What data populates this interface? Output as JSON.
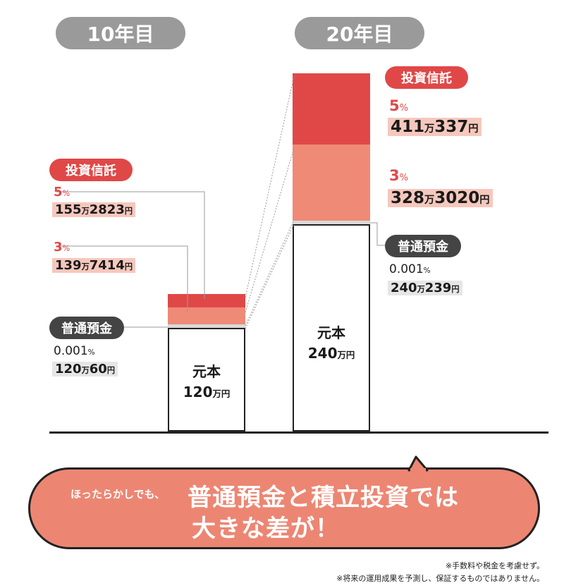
{
  "chart_data": {
    "type": "bar",
    "categories": [
      "10年目",
      "20年目"
    ],
    "series": [
      {
        "name": "元本",
        "values": [
          1200000,
          2400000
        ]
      },
      {
        "name": "普通預金 0.001%",
        "values": [
          1200060,
          2400239
        ]
      },
      {
        "name": "投資信託 3%",
        "values": [
          1397414,
          3283020
        ]
      },
      {
        "name": "投資信託 5%",
        "values": [
          1552823,
          4110337
        ]
      }
    ]
  },
  "year_labels": [
    "10年目",
    "20年目"
  ],
  "y10": {
    "principal": {
      "label": "元本",
      "num": "120",
      "unit": "万円"
    },
    "trust_tag": "投資信託",
    "r5": {
      "num": "5",
      "pct": "%",
      "a1": "155",
      "u1": "万",
      "a2": "2823",
      "u2": "円"
    },
    "r3": {
      "num": "3",
      "pct": "%",
      "a1": "139",
      "u1": "万",
      "a2": "7414",
      "u2": "円"
    },
    "deposit_tag": "普通預金",
    "dep": {
      "num": "0.001",
      "pct": "%",
      "a1": "120",
      "u1": "万",
      "a2": "60",
      "u2": "円"
    }
  },
  "y20": {
    "principal": {
      "label": "元本",
      "num": "240",
      "unit": "万円"
    },
    "trust_tag": "投資信託",
    "r5": {
      "num": "5",
      "pct": "%",
      "a1": "411",
      "u1": "万",
      "a2": "337",
      "u2": "円"
    },
    "r3": {
      "num": "3",
      "pct": "%",
      "a1": "328",
      "u1": "万",
      "a2": "3020",
      "u2": "円"
    },
    "deposit_tag": "普通預金",
    "dep": {
      "num": "0.001",
      "pct": "%",
      "a1": "240",
      "u1": "万",
      "a2": "239",
      "u2": "円"
    }
  },
  "callout": {
    "lead": "ほったらかしでも、",
    "line1": "普通預金と積立投資では",
    "line2": "大きな差が！"
  },
  "notes": [
    "※手数料や税金を考慮せず。",
    "※将来の運用成果を予測し、保証するものではありません。"
  ],
  "colors": {
    "rate5": "#e04848",
    "rate3": "#ef8a76",
    "deposit": "#d9d9d9",
    "tag_red": "#e04848",
    "callout": "#ec8673"
  }
}
